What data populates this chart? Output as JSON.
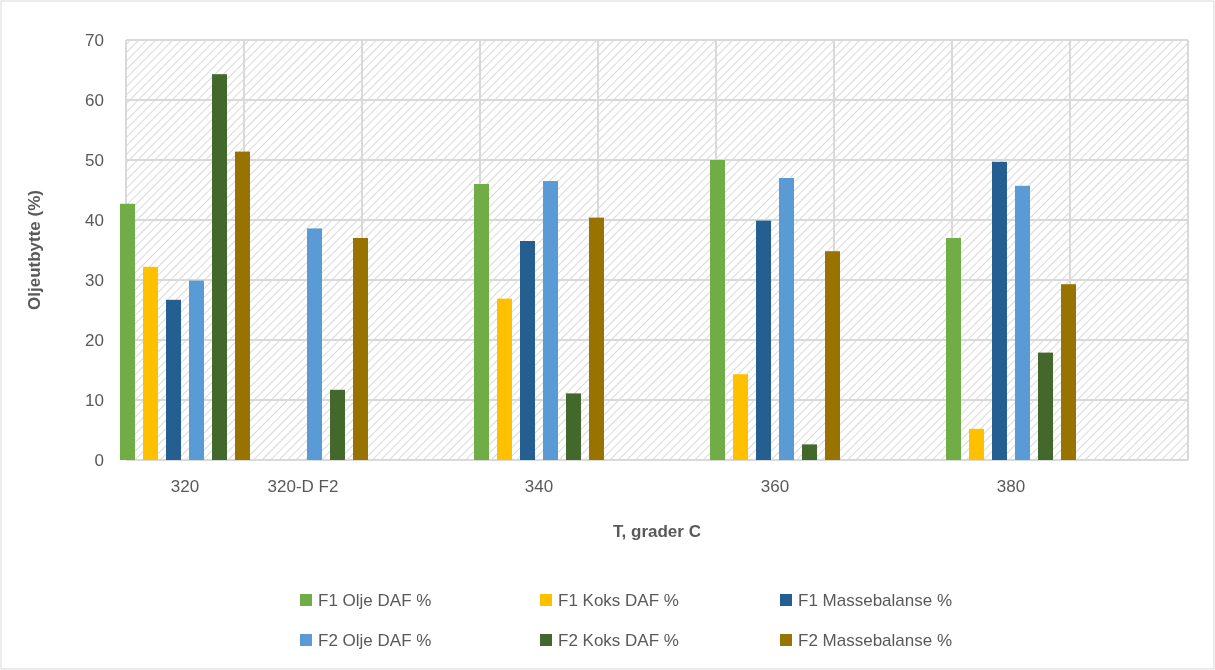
{
  "chart_data": {
    "type": "bar",
    "xlabel": "T, grader C",
    "ylabel": "Oljeutbytte (%)",
    "categories": [
      "320",
      "320-D F2",
      null,
      "340",
      null,
      "360",
      null,
      "380",
      null
    ],
    "series": [
      {
        "name": "F1 Olje DAF %",
        "color": "#70ad47",
        "values": [
          42.7,
          null,
          null,
          46.0,
          null,
          50.0,
          null,
          37.0,
          null
        ]
      },
      {
        "name": "F1 Koks DAF %",
        "color": "#ffc000",
        "values": [
          32.2,
          null,
          null,
          26.9,
          null,
          14.3,
          null,
          5.2,
          null
        ]
      },
      {
        "name": "F1 Massebalanse %",
        "color": "#255e91",
        "values": [
          26.7,
          null,
          null,
          36.5,
          null,
          39.9,
          null,
          49.7,
          null
        ]
      },
      {
        "name": "F2 Olje DAF %",
        "color": "#5b9bd5",
        "values": [
          29.9,
          38.6,
          null,
          46.5,
          null,
          47.0,
          null,
          45.7,
          null
        ]
      },
      {
        "name": "F2 Koks DAF %",
        "color": "#43682b",
        "values": [
          64.3,
          11.7,
          null,
          11.1,
          null,
          2.6,
          null,
          17.9,
          null
        ]
      },
      {
        "name": "F2 Massebalanse %",
        "color": "#997300",
        "values": [
          51.4,
          37.0,
          null,
          40.4,
          null,
          34.8,
          null,
          29.3,
          null
        ]
      }
    ],
    "ylim": [
      0,
      70
    ],
    "yticks": [
      0,
      10,
      20,
      30,
      40,
      50,
      60,
      70
    ],
    "grid": true,
    "legend": "bottom"
  }
}
